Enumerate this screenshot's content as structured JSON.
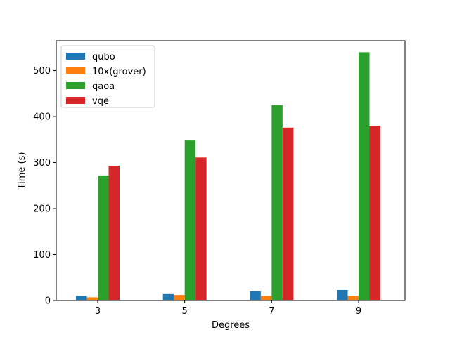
{
  "chart_data": {
    "type": "bar",
    "categories": [
      "3",
      "5",
      "7",
      "9"
    ],
    "xlabel": "Degrees",
    "ylabel": "Time (s)",
    "ylim": [
      0,
      565
    ],
    "yticks": [
      0,
      100,
      200,
      300,
      400,
      500
    ],
    "grid": false,
    "legend": "top-left",
    "series": [
      {
        "name": "qubo",
        "color": "#1f77b4",
        "values": [
          10,
          14,
          20,
          23
        ]
      },
      {
        "name": "10x(grover)",
        "color": "#ff7f0e",
        "values": [
          7,
          12,
          10,
          10
        ]
      },
      {
        "name": "qaoa",
        "color": "#2ca02c",
        "values": [
          272,
          348,
          425,
          540
        ]
      },
      {
        "name": "vqe",
        "color": "#d62728",
        "values": [
          293,
          311,
          376,
          380
        ]
      }
    ]
  }
}
